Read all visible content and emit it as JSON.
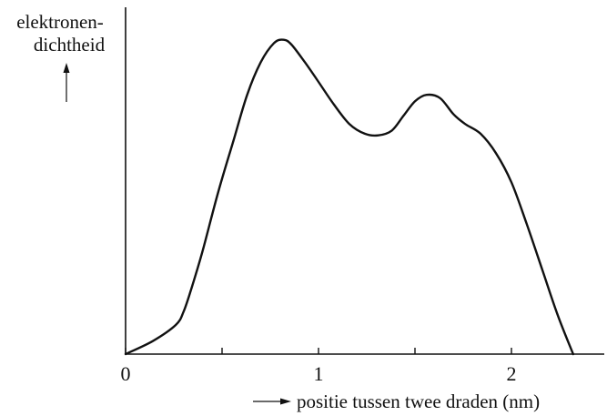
{
  "chart_data": {
    "type": "line",
    "title": "",
    "ylabel_lines": [
      "elektronen-",
      "dichtheid"
    ],
    "xlabel": "positie tussen twee draden (nm)",
    "x_ticks": [
      0,
      0.5,
      1,
      1.5,
      2
    ],
    "x_tick_labels": [
      "0",
      "1",
      "2"
    ],
    "xlim": [
      0,
      2.45
    ],
    "ylim": [
      0,
      1
    ],
    "grid": false,
    "series": [
      {
        "points": [
          [
            0.0,
            0.0
          ],
          [
            0.14,
            0.04
          ],
          [
            0.26,
            0.09
          ],
          [
            0.3,
            0.13
          ],
          [
            0.34,
            0.2
          ],
          [
            0.4,
            0.32
          ],
          [
            0.48,
            0.5
          ],
          [
            0.56,
            0.66
          ],
          [
            0.63,
            0.8
          ],
          [
            0.7,
            0.9
          ],
          [
            0.77,
            0.96
          ],
          [
            0.82,
            0.97
          ],
          [
            0.86,
            0.955
          ],
          [
            0.93,
            0.9
          ],
          [
            1.0,
            0.84
          ],
          [
            1.08,
            0.77
          ],
          [
            1.16,
            0.71
          ],
          [
            1.24,
            0.68
          ],
          [
            1.31,
            0.675
          ],
          [
            1.38,
            0.69
          ],
          [
            1.44,
            0.735
          ],
          [
            1.5,
            0.78
          ],
          [
            1.56,
            0.8
          ],
          [
            1.63,
            0.79
          ],
          [
            1.7,
            0.74
          ],
          [
            1.76,
            0.71
          ],
          [
            1.84,
            0.68
          ],
          [
            1.92,
            0.62
          ],
          [
            2.0,
            0.53
          ],
          [
            2.08,
            0.4
          ],
          [
            2.16,
            0.26
          ],
          [
            2.24,
            0.12
          ],
          [
            2.32,
            0.0
          ]
        ]
      }
    ]
  }
}
